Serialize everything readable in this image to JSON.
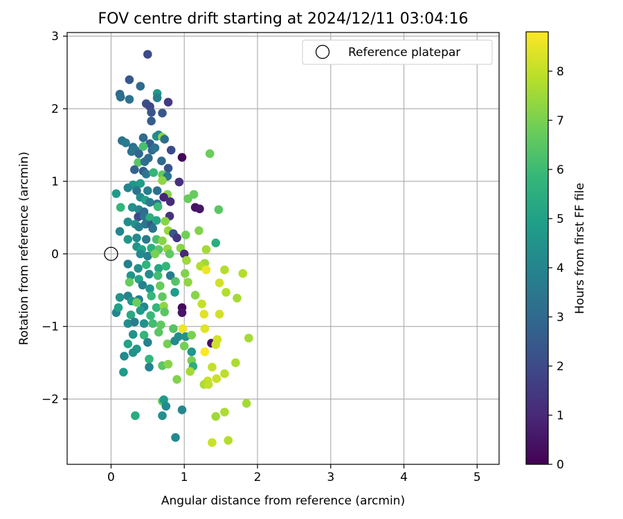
{
  "chart_data": {
    "type": "scatter",
    "title": "FOV centre drift starting at 2024/12/11 03:04:16",
    "xlabel": "Angular distance from reference (arcmin)",
    "ylabel": "Rotation from reference (arcmin)",
    "xlim": [
      -0.6,
      5.3
    ],
    "ylim": [
      -2.9,
      3.05
    ],
    "x_ticks": [
      0,
      1,
      2,
      3,
      4,
      5
    ],
    "y_ticks": [
      -2,
      -1,
      0,
      1,
      2,
      3
    ],
    "grid": true,
    "legend": {
      "label": "Reference platepar",
      "placement": "top-right",
      "marker": "open-circle",
      "color": "#000000"
    },
    "reference_point": {
      "x": 0,
      "y": 0
    },
    "colorbar": {
      "label": "Hours from first FF file",
      "min": 0,
      "max": 8.8,
      "ticks": [
        0,
        1,
        2,
        3,
        4,
        5,
        6,
        7,
        8
      ],
      "colormap": "viridis",
      "colormap_stops": [
        "#440154",
        "#482878",
        "#3e4989",
        "#31688e",
        "#26828e",
        "#1f9e89",
        "#35b779",
        "#6ece58",
        "#b5de2b",
        "#fde725"
      ]
    },
    "series": [
      {
        "values": [
          [
            0.5,
            2.75,
            2.0
          ],
          [
            0.25,
            2.4,
            2.4
          ],
          [
            0.12,
            2.2,
            3.0
          ],
          [
            0.13,
            2.16,
            3.2
          ],
          [
            0.25,
            2.13,
            3.3
          ],
          [
            0.4,
            2.31,
            3.0
          ],
          [
            0.63,
            2.21,
            4.7
          ],
          [
            0.63,
            2.15,
            3.8
          ],
          [
            0.48,
            2.07,
            2.1
          ],
          [
            0.53,
            2.03,
            1.9
          ],
          [
            0.55,
            1.95,
            2.3
          ],
          [
            0.7,
            1.94,
            2.4
          ],
          [
            0.78,
            2.09,
            1.5
          ],
          [
            0.55,
            1.83,
            2.6
          ],
          [
            0.15,
            1.56,
            3.3
          ],
          [
            0.2,
            1.53,
            3.6
          ],
          [
            0.3,
            1.47,
            3.2
          ],
          [
            0.44,
            1.6,
            3.0
          ],
          [
            0.53,
            1.52,
            2.6
          ],
          [
            0.62,
            1.62,
            4.6
          ],
          [
            0.65,
            1.64,
            4.2
          ],
          [
            0.7,
            1.61,
            7.3
          ],
          [
            0.73,
            1.58,
            3.2
          ],
          [
            0.28,
            1.41,
            3.4
          ],
          [
            0.33,
            1.43,
            3.5
          ],
          [
            0.38,
            1.38,
            2.9
          ],
          [
            0.44,
            1.48,
            6.2
          ],
          [
            0.56,
            1.43,
            3.0
          ],
          [
            0.6,
            1.46,
            3.4
          ],
          [
            0.82,
            1.43,
            2.0
          ],
          [
            0.97,
            1.33,
            0.1
          ],
          [
            1.35,
            1.38,
            6.8
          ],
          [
            0.37,
            1.26,
            6.5
          ],
          [
            0.46,
            1.27,
            3.3
          ],
          [
            0.51,
            1.32,
            3.1
          ],
          [
            0.69,
            1.28,
            3.0
          ],
          [
            0.78,
            1.18,
            2.3
          ],
          [
            0.32,
            1.16,
            2.8
          ],
          [
            0.44,
            1.14,
            2.6
          ],
          [
            0.48,
            1.1,
            3.5
          ],
          [
            0.58,
            1.12,
            5.8
          ],
          [
            0.7,
            1.09,
            6.6
          ],
          [
            0.77,
            1.07,
            3.5
          ],
          [
            0.93,
            0.99,
            1.2
          ],
          [
            0.7,
            1.01,
            7.3
          ],
          [
            0.4,
            0.97,
            4.9
          ],
          [
            0.3,
            0.95,
            4.6
          ],
          [
            0.23,
            0.91,
            4.0
          ],
          [
            0.07,
            0.83,
            4.8
          ],
          [
            0.35,
            0.87,
            3.4
          ],
          [
            0.5,
            0.87,
            3.8
          ],
          [
            0.63,
            0.87,
            3.2
          ],
          [
            0.77,
            0.82,
            7.2
          ],
          [
            1.13,
            0.82,
            6.7
          ],
          [
            0.72,
            0.78,
            0.9
          ],
          [
            0.81,
            0.72,
            1.1
          ],
          [
            1.05,
            0.76,
            6.7
          ],
          [
            0.4,
            0.78,
            4.3
          ],
          [
            0.47,
            0.74,
            5.1
          ],
          [
            0.53,
            0.71,
            3.6
          ],
          [
            0.63,
            0.69,
            3.3
          ],
          [
            0.13,
            0.64,
            5.8
          ],
          [
            0.29,
            0.64,
            4.4
          ],
          [
            0.38,
            0.61,
            4.1
          ],
          [
            0.45,
            0.58,
            3.1
          ],
          [
            0.64,
            0.65,
            6.0
          ],
          [
            1.15,
            0.64,
            0.4
          ],
          [
            1.21,
            0.62,
            0.5
          ],
          [
            1.47,
            0.61,
            6.5
          ],
          [
            0.37,
            0.51,
            2.0
          ],
          [
            0.45,
            0.52,
            3.3
          ],
          [
            0.53,
            0.5,
            5.5
          ],
          [
            0.8,
            0.52,
            1.3
          ],
          [
            0.23,
            0.44,
            4.3
          ],
          [
            0.33,
            0.41,
            4.4
          ],
          [
            0.47,
            0.41,
            3.5
          ],
          [
            0.55,
            0.4,
            2.4
          ],
          [
            0.62,
            0.46,
            5.2
          ],
          [
            0.74,
            0.45,
            7.2
          ],
          [
            0.12,
            0.31,
            4.0
          ],
          [
            0.38,
            0.37,
            3.8
          ],
          [
            0.57,
            0.35,
            3.3
          ],
          [
            0.78,
            0.32,
            7.4
          ],
          [
            0.85,
            0.28,
            2.3
          ],
          [
            1.02,
            0.26,
            6.9
          ],
          [
            1.2,
            0.32,
            7.1
          ],
          [
            0.23,
            0.2,
            4.6
          ],
          [
            0.35,
            0.22,
            4.2
          ],
          [
            0.48,
            0.2,
            3.6
          ],
          [
            0.62,
            0.2,
            6.2
          ],
          [
            0.7,
            0.18,
            7.2
          ],
          [
            0.9,
            0.22,
            1.4
          ],
          [
            1.43,
            0.15,
            5.5
          ],
          [
            0.35,
            0.1,
            4.5
          ],
          [
            0.42,
            0.06,
            5.1
          ],
          [
            0.55,
            0.08,
            5.5
          ],
          [
            0.65,
            0.06,
            6.5
          ],
          [
            0.77,
            0.07,
            7.4
          ],
          [
            0.95,
            0.08,
            7.2
          ],
          [
            1.3,
            0.06,
            7.6
          ],
          [
            0.4,
            0.0,
            4.2
          ],
          [
            0.5,
            -0.03,
            3.9
          ],
          [
            0.6,
            0.0,
            7.0
          ],
          [
            0.8,
            0.0,
            6.6
          ],
          [
            1.0,
            0.0,
            1.0
          ],
          [
            0.23,
            -0.14,
            3.8
          ],
          [
            0.37,
            -0.2,
            4.4
          ],
          [
            0.48,
            -0.15,
            5.7
          ],
          [
            0.65,
            -0.2,
            5.2
          ],
          [
            0.75,
            -0.17,
            5.8
          ],
          [
            1.03,
            -0.09,
            7.5
          ],
          [
            1.28,
            -0.13,
            7.5
          ],
          [
            1.22,
            -0.17,
            7.8
          ],
          [
            0.27,
            -0.3,
            4.6
          ],
          [
            0.38,
            -0.35,
            5.1
          ],
          [
            0.52,
            -0.28,
            4.3
          ],
          [
            0.64,
            -0.3,
            6.1
          ],
          [
            0.81,
            -0.3,
            3.7
          ],
          [
            1.01,
            -0.27,
            7.1
          ],
          [
            1.3,
            -0.22,
            8.6
          ],
          [
            1.55,
            -0.22,
            7.8
          ],
          [
            1.8,
            -0.27,
            7.8
          ],
          [
            0.25,
            -0.39,
            6.7
          ],
          [
            0.43,
            -0.43,
            3.9
          ],
          [
            0.53,
            -0.48,
            4.6
          ],
          [
            0.67,
            -0.44,
            6.7
          ],
          [
            0.88,
            -0.38,
            6.4
          ],
          [
            1.05,
            -0.39,
            7.3
          ],
          [
            1.48,
            -0.4,
            8.2
          ],
          [
            0.12,
            -0.6,
            4.5
          ],
          [
            0.23,
            -0.58,
            3.9
          ],
          [
            0.38,
            -0.63,
            3.7
          ],
          [
            0.55,
            -0.58,
            5.8
          ],
          [
            0.7,
            -0.59,
            6.6
          ],
          [
            0.87,
            -0.53,
            4.9
          ],
          [
            1.15,
            -0.57,
            7.2
          ],
          [
            1.57,
            -0.53,
            7.8
          ],
          [
            1.72,
            -0.61,
            7.6
          ],
          [
            0.28,
            -0.65,
            4.6
          ],
          [
            0.35,
            -0.67,
            6.8
          ],
          [
            0.45,
            -0.73,
            4.0
          ],
          [
            0.62,
            -0.74,
            5.8
          ],
          [
            0.72,
            -0.72,
            7.3
          ],
          [
            0.97,
            -0.74,
            0.2
          ],
          [
            1.24,
            -0.69,
            8.0
          ],
          [
            0.07,
            -0.81,
            4.0
          ],
          [
            0.1,
            -0.74,
            5.0
          ],
          [
            0.27,
            -0.84,
            5.3
          ],
          [
            0.4,
            -0.78,
            4.8
          ],
          [
            0.54,
            -0.85,
            5.9
          ],
          [
            0.73,
            -0.8,
            6.5
          ],
          [
            0.97,
            -0.81,
            0.5
          ],
          [
            1.27,
            -0.83,
            8.4
          ],
          [
            1.48,
            -0.83,
            8.2
          ],
          [
            0.23,
            -0.96,
            4.3
          ],
          [
            0.32,
            -0.94,
            3.8
          ],
          [
            0.45,
            -0.96,
            4.5
          ],
          [
            0.57,
            -0.96,
            6.1
          ],
          [
            0.68,
            -0.98,
            6.6
          ],
          [
            0.85,
            -1.03,
            6.4
          ],
          [
            0.98,
            -1.03,
            8.6
          ],
          [
            1.28,
            -1.03,
            8.4
          ],
          [
            0.3,
            -1.11,
            4.4
          ],
          [
            0.45,
            -1.12,
            5.8
          ],
          [
            0.65,
            -1.08,
            6.5
          ],
          [
            0.92,
            -1.14,
            4.3
          ],
          [
            1.02,
            -1.14,
            4.5
          ],
          [
            1.1,
            -1.12,
            7.0
          ],
          [
            1.37,
            -1.23,
            0.4
          ],
          [
            1.45,
            -1.18,
            8.2
          ],
          [
            1.88,
            -1.16,
            7.6
          ],
          [
            0.23,
            -1.24,
            5.1
          ],
          [
            0.35,
            -1.31,
            4.7
          ],
          [
            0.5,
            -1.22,
            3.9
          ],
          [
            0.77,
            -1.24,
            6.9
          ],
          [
            0.87,
            -1.2,
            4.2
          ],
          [
            1.0,
            -1.27,
            6.9
          ],
          [
            1.1,
            -1.35,
            4.6
          ],
          [
            1.28,
            -1.35,
            8.8
          ],
          [
            1.43,
            -1.25,
            8.2
          ],
          [
            0.18,
            -1.41,
            4.2
          ],
          [
            0.3,
            -1.36,
            4.4
          ],
          [
            0.52,
            -1.45,
            5.8
          ],
          [
            0.7,
            -1.54,
            6.5
          ],
          [
            0.78,
            -1.52,
            7.2
          ],
          [
            1.1,
            -1.47,
            7.0
          ],
          [
            1.12,
            -1.55,
            5.5
          ],
          [
            1.38,
            -1.56,
            8.0
          ],
          [
            1.7,
            -1.5,
            7.7
          ],
          [
            0.17,
            -1.63,
            4.8
          ],
          [
            0.52,
            -1.56,
            3.9
          ],
          [
            1.08,
            -1.62,
            7.6
          ],
          [
            1.32,
            -1.75,
            8.1
          ],
          [
            1.44,
            -1.72,
            8.1
          ],
          [
            1.55,
            -1.65,
            7.9
          ],
          [
            0.9,
            -1.73,
            7.1
          ],
          [
            1.27,
            -1.8,
            7.7
          ],
          [
            1.33,
            -1.8,
            8.0
          ],
          [
            1.85,
            -2.06,
            7.6
          ],
          [
            0.7,
            -2.03,
            6.7
          ],
          [
            0.72,
            -2.01,
            4.8
          ],
          [
            0.75,
            -2.1,
            4.2
          ],
          [
            0.97,
            -2.15,
            4.1
          ],
          [
            0.33,
            -2.23,
            5.4
          ],
          [
            0.7,
            -2.23,
            4.4
          ],
          [
            1.43,
            -2.24,
            7.5
          ],
          [
            1.55,
            -2.18,
            7.7
          ],
          [
            0.88,
            -2.53,
            4.2
          ],
          [
            1.38,
            -2.6,
            8.1
          ],
          [
            1.6,
            -2.57,
            7.8
          ]
        ]
      }
    ]
  }
}
